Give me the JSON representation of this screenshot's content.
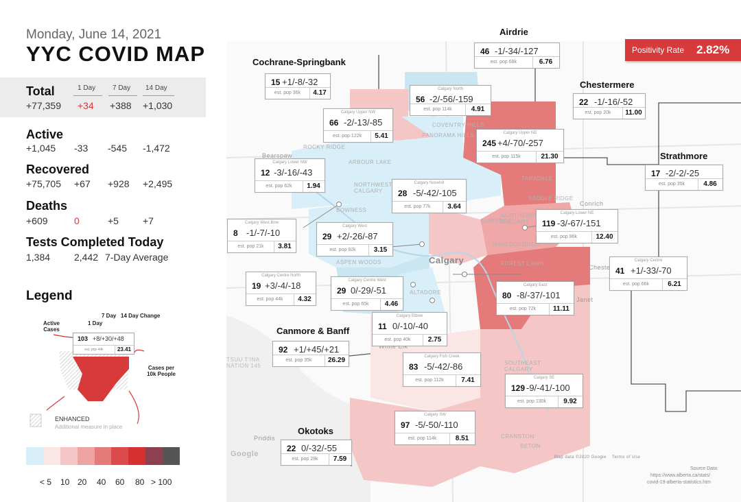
{
  "header": {
    "date": "Monday, June 14, 2021",
    "title": "YYC COVID MAP"
  },
  "columns": {
    "day1": "1 Day",
    "day7": "7 Day",
    "day14": "14 Day"
  },
  "stats": {
    "total": {
      "label": "Total",
      "value": "+77,359",
      "d1": "+34",
      "d7": "+388",
      "d14": "+1,030"
    },
    "active": {
      "label": "Active",
      "value": "+1,045",
      "d1": "-33",
      "d7": "-545",
      "d14": "-1,472"
    },
    "recovered": {
      "label": "Recovered",
      "value": "+75,705",
      "d1": "+67",
      "d7": "+928",
      "d14": "+2,495"
    },
    "deaths": {
      "label": "Deaths",
      "value": "+609",
      "d1": "0",
      "d7": "+5",
      "d14": "+7"
    },
    "tests": {
      "label": "Tests Completed Today",
      "value": "1,384",
      "avg_value": "2,442",
      "avg_label": "7-Day Average"
    }
  },
  "positivity": {
    "label": "Positivity Rate",
    "value": "2.82%"
  },
  "legend": {
    "title": "Legend",
    "h_7day": "7 Day",
    "h_14day": "14 Day Change",
    "h_1day": "1 Day",
    "active_cases": "Active Cases",
    "cases_per": "Cases per 10k People",
    "sample": {
      "active": "103",
      "changes": "+8/+30/+48",
      "pop": "est. pop 44k",
      "rate": "23.41"
    },
    "enhanced": "ENHANCED",
    "enhanced_desc": "Additional measure in place",
    "scale_colors": [
      "#d8eef8",
      "#fbe6e6",
      "#f5c6c6",
      "#eea3a3",
      "#e57a7a",
      "#dc4b4b",
      "#d63030",
      "#8c4050",
      "#555555"
    ],
    "scale_labels": [
      "< 5",
      "10",
      "20",
      "40",
      "60",
      "80",
      "> 100"
    ]
  },
  "towns": {
    "airdrie": "Airdrie",
    "cochrane": "Cochrane-Springbank",
    "chestermere": "Chestermere",
    "strathmore": "Strathmore",
    "canmore": "Canmore & Banff",
    "okotoks": "Okotoks"
  },
  "areas": [
    {
      "name": "",
      "active": "46",
      "change": "-1/-34/-127",
      "pop": "est. pop 68k",
      "rate": "6.76"
    },
    {
      "name": "",
      "active": "15",
      "change": "+1/-8/-32",
      "pop": "est. pop 36k",
      "rate": "4.17"
    },
    {
      "name": "Calgary North",
      "active": "56",
      "change": "-2/-56/-159",
      "pop": "est. pop 114k",
      "rate": "4.91"
    },
    {
      "name": "",
      "active": "22",
      "change": "-1/-16/-52",
      "pop": "est. pop 20k",
      "rate": "11.00"
    },
    {
      "name": "Calgary Upper NW",
      "active": "66",
      "change": "-2/-13/-85",
      "pop": "est. pop 122k",
      "rate": "5.41"
    },
    {
      "name": "Calgary Upper NE",
      "active": "245",
      "change": "+4/-70/-257",
      "pop": "est. pop 115k",
      "rate": "21.30"
    },
    {
      "name": "Calgary Lower NW",
      "active": "12",
      "change": "-3/-16/-43",
      "pop": "est. pop 62k",
      "rate": "1.94"
    },
    {
      "name": "",
      "active": "17",
      "change": "-2/-2/-25",
      "pop": "est. pop 35k",
      "rate": "4.86"
    },
    {
      "name": "Calgary Nosehill",
      "active": "28",
      "change": "-5/-42/-105",
      "pop": "est. pop 77k",
      "rate": "3.64"
    },
    {
      "name": "Calgary West Bow",
      "active": "8",
      "change": "-1/-7/-10",
      "pop": "est. pop 21k",
      "rate": "3.81"
    },
    {
      "name": "Calgary West",
      "active": "29",
      "change": "+2/-26/-87",
      "pop": "est. pop 92k",
      "rate": "3.15"
    },
    {
      "name": "Calgary Lower NE",
      "active": "119",
      "change": "-3/-67/-151",
      "pop": "est. pop 96k",
      "rate": "12.40"
    },
    {
      "name": "Calgary Centre North",
      "active": "19",
      "change": "+3/-4/-18",
      "pop": "est. pop 44k",
      "rate": "4.32"
    },
    {
      "name": "Calgary Centre West",
      "active": "29",
      "change": "0/-29/-51",
      "pop": "est. pop 65k",
      "rate": "4.46"
    },
    {
      "name": "Calgary Centre",
      "active": "41",
      "change": "+1/-33/-70",
      "pop": "est. pop 66k",
      "rate": "6.21"
    },
    {
      "name": "Calgary East",
      "active": "80",
      "change": "-8/-37/-101",
      "pop": "est. pop 72k",
      "rate": "11.11"
    },
    {
      "name": "Calgary Elbow",
      "active": "11",
      "change": "0/-10/-40",
      "pop": "est. pop 40k",
      "rate": "2.75"
    },
    {
      "name": "",
      "active": "92",
      "change": "+1/+45/+21",
      "pop": "est. pop 35k",
      "rate": "26.29"
    },
    {
      "name": "Calgary Fish Creek",
      "active": "83",
      "change": "-5/-42/-86",
      "pop": "est. pop 112k",
      "rate": "7.41"
    },
    {
      "name": "Calgary SE",
      "active": "129",
      "change": "-9/-41/-100",
      "pop": "est. pop 130k",
      "rate": "9.92"
    },
    {
      "name": "Calgary SW",
      "active": "97",
      "change": "-5/-50/-110",
      "pop": "est. pop 114k",
      "rate": "8.51"
    },
    {
      "name": "",
      "active": "22",
      "change": "0/-32/-55",
      "pop": "est. pop 29k",
      "rate": "7.59"
    }
  ],
  "map_labels": {
    "city": "Calgary",
    "conrich": "Conrich",
    "chestermere_short": "Cheste",
    "janet": "Janet",
    "priddis": "Priddis",
    "white": "White Elk",
    "bearspaw": "Bearspaw",
    "google": "Google",
    "map_data": "Map data ©2020 Google",
    "terms": "Terms of Use",
    "tsuutina": "TSUU T'INA NATION 145",
    "coventry": "COVENTRY HILLS",
    "panorama": "PANORAMA HILLS",
    "rocky": "ROCKY RIDGE",
    "arbour": "ARBOUR LAKE",
    "northwest": "NORTHWEST CALGARY",
    "northeast": "NORTHEAST CALGARY",
    "marlborough": "MARLBOROUGH",
    "forest": "FOREST LAWN",
    "aspen": "ASPEN WOODS",
    "altadore": "ALTADORE",
    "southeast": "SOUTHEAST CALGARY",
    "bowness": "BOWNESS",
    "taradale": "TARADALE",
    "cranston": "CRANSTON",
    "seton": "SETON",
    "sunridge": "SUNRIDGE",
    "saddleridge": "SADDLE RIDGE"
  },
  "source": {
    "title": "Source Data:",
    "url1": "https://www.alberta.ca/stats/",
    "url2": "covid-19-alberta-statistics.htm"
  }
}
